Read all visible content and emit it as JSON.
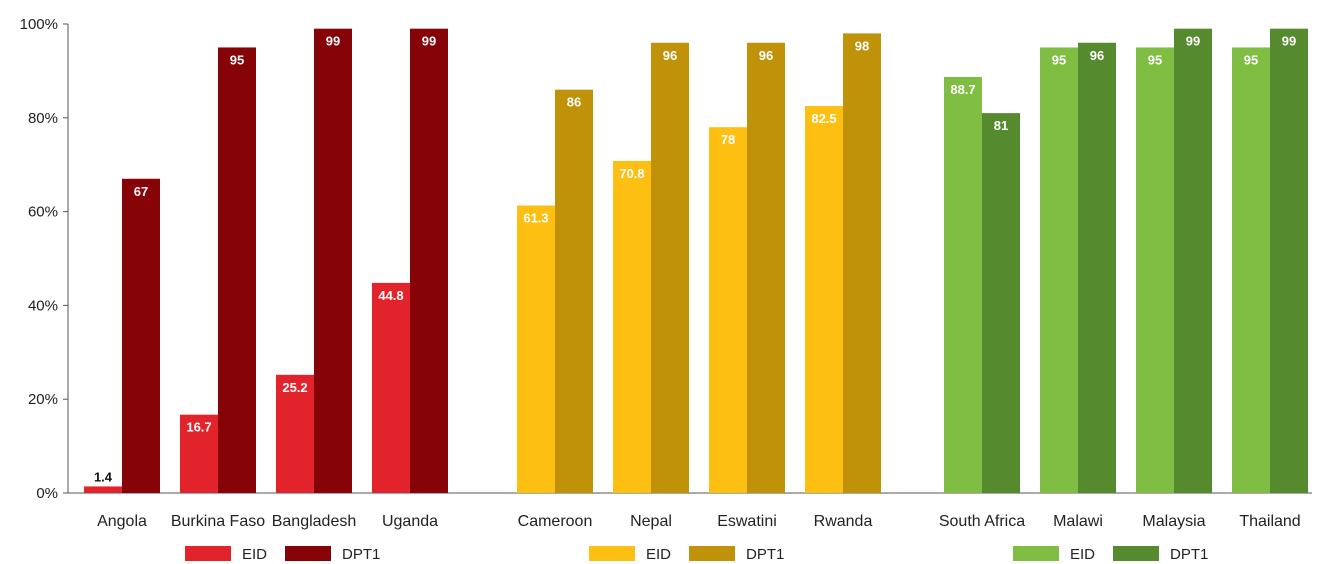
{
  "chart_data": {
    "type": "bar",
    "title": "",
    "xlabel": "",
    "ylabel": "",
    "ylim": [
      0,
      100
    ],
    "y_ticks": [
      "0%",
      "20%",
      "40%",
      "60%",
      "80%",
      "100%"
    ],
    "grid": false,
    "legend_placement": "bottom",
    "groups": [
      {
        "categories": [
          "Angola",
          "Burkina Faso",
          "Bangladesh",
          "Uganda"
        ],
        "series": [
          {
            "name": "EID",
            "color": "#e3232b",
            "values": [
              1.4,
              16.7,
              25.2,
              44.8
            ],
            "labels": [
              "1.4",
              "16.7",
              "25.2",
              "44.8"
            ]
          },
          {
            "name": "DPT1",
            "color": "#860308",
            "values": [
              67,
              95,
              99,
              99
            ],
            "labels": [
              "67",
              "95",
              "99",
              "99"
            ]
          }
        ]
      },
      {
        "categories": [
          "Cameroon",
          "Nepal",
          "Eswatini",
          "Rwanda"
        ],
        "series": [
          {
            "name": "EID",
            "color": "#fcbf12",
            "values": [
              61.3,
              70.8,
              78,
              82.5
            ],
            "labels": [
              "61.3",
              "70.8",
              "78",
              "82.5"
            ]
          },
          {
            "name": "DPT1",
            "color": "#bf920a",
            "values": [
              86,
              96,
              96,
              98
            ],
            "labels": [
              "86",
              "96",
              "96",
              "98"
            ]
          }
        ]
      },
      {
        "categories": [
          "South Africa",
          "Malawi",
          "Malaysia",
          "Thailand"
        ],
        "series": [
          {
            "name": "EID",
            "color": "#80bd43",
            "values": [
              88.7,
              95,
              95,
              95
            ],
            "labels": [
              "88.7",
              "95",
              "95",
              "95"
            ]
          },
          {
            "name": "DPT1",
            "color": "#568a2e",
            "values": [
              81,
              96,
              99,
              99
            ],
            "labels": [
              "81",
              "96",
              "99",
              "99"
            ]
          }
        ]
      }
    ]
  }
}
